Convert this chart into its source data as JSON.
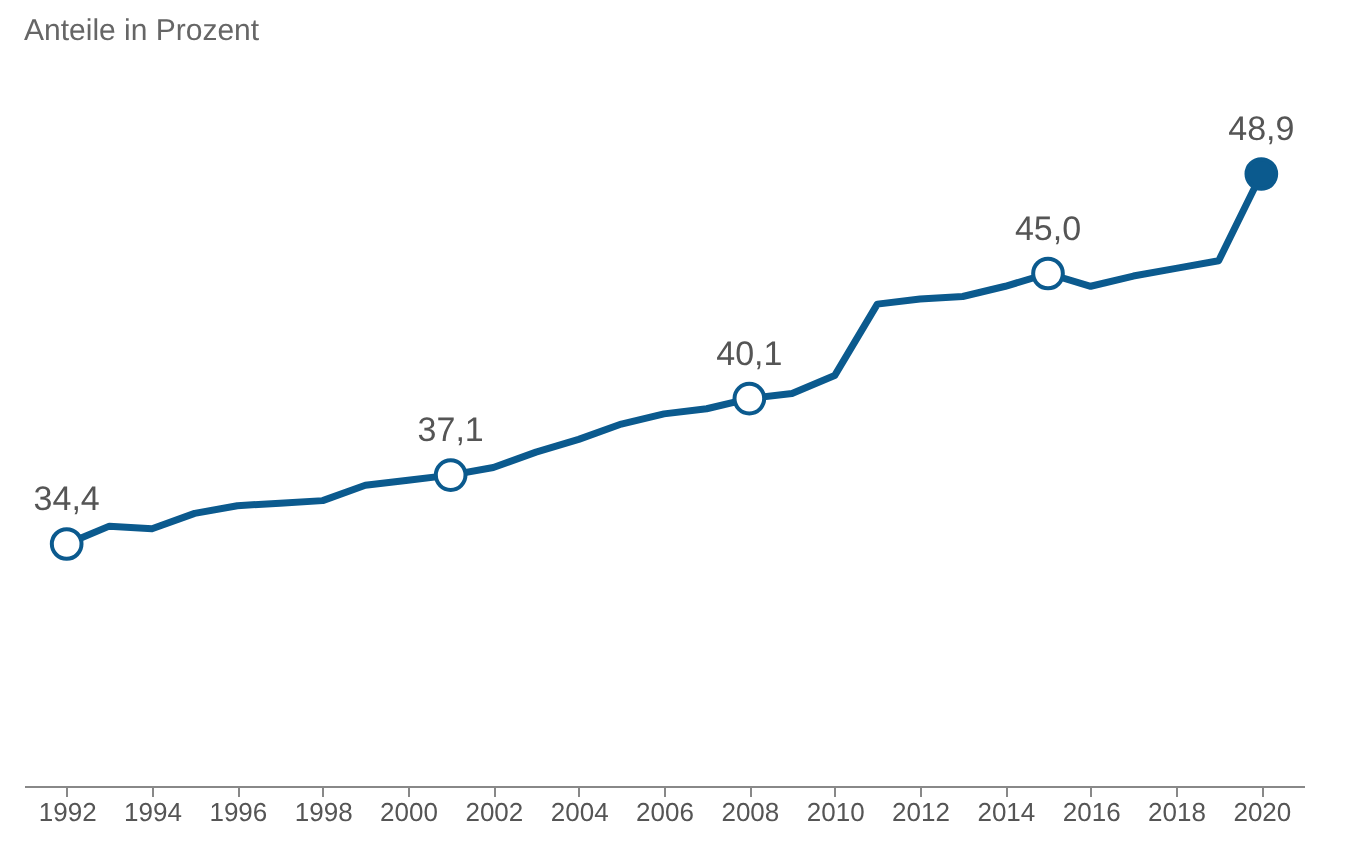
{
  "chart_data": {
    "type": "line",
    "title": "Anteile in Prozent",
    "x": [
      1992,
      1993,
      1994,
      1995,
      1996,
      1997,
      1998,
      1999,
      2000,
      2001,
      2002,
      2003,
      2004,
      2005,
      2006,
      2007,
      2008,
      2009,
      2010,
      2011,
      2012,
      2013,
      2014,
      2015,
      2016,
      2017,
      2018,
      2019,
      2020
    ],
    "series": [
      {
        "color": "#0b5a8e",
        "values": [
          34.4,
          35.1,
          35.0,
          35.6,
          35.9,
          36.0,
          36.1,
          36.7,
          36.9,
          37.1,
          37.4,
          38.0,
          38.5,
          39.1,
          39.5,
          39.7,
          40.1,
          40.3,
          41.0,
          43.8,
          44.0,
          44.1,
          44.5,
          45.0,
          44.5,
          44.9,
          45.2,
          45.5,
          48.9
        ],
        "value_labels": [
          "34,4",
          null,
          null,
          null,
          null,
          null,
          null,
          null,
          null,
          "37,1",
          null,
          null,
          null,
          null,
          null,
          null,
          "40,1",
          null,
          null,
          null,
          null,
          null,
          null,
          "45,0",
          null,
          null,
          null,
          null,
          "48,9"
        ]
      }
    ],
    "xlim": [
      1991,
      2021
    ],
    "xticks": [
      1992,
      1994,
      1996,
      1998,
      2000,
      2002,
      2004,
      2006,
      2008,
      2010,
      2012,
      2014,
      2016,
      2018,
      2020
    ],
    "tick_labels": "x",
    "grid": false,
    "line_style": "solid"
  }
}
